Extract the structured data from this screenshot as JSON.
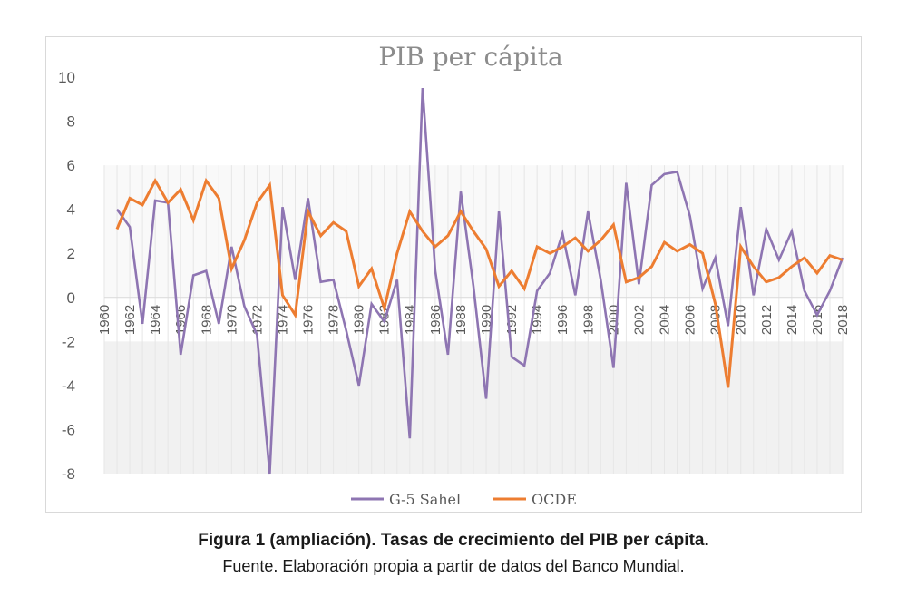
{
  "caption": {
    "title": "Figura 1 (ampliación). Tasas de crecimiento del PIB per cápita.",
    "source": "Fuente. Elaboración propia a partir de datos del Banco Mundial."
  },
  "chart_data": {
    "type": "line",
    "title": "PIB per cápita",
    "xlabel": "",
    "ylabel": "",
    "ylim": [
      -8,
      10
    ],
    "yticks": [
      -8,
      -6,
      -4,
      -2,
      0,
      2,
      4,
      6,
      8,
      10
    ],
    "xlim": [
      1960,
      2018
    ],
    "x_tick_labels": [
      "1960",
      "1962",
      "1964",
      "1966",
      "1968",
      "1970",
      "1972",
      "1974",
      "1976",
      "1978",
      "1980",
      "1982",
      "1984",
      "1986",
      "1988",
      "1990",
      "1992",
      "1994",
      "1996",
      "1998",
      "2000",
      "2002",
      "2004",
      "2006",
      "2008",
      "2010",
      "2012",
      "2014",
      "2016",
      "2018"
    ],
    "legend_position": "bottom",
    "grid": "vertical",
    "x": [
      1961,
      1962,
      1963,
      1964,
      1965,
      1966,
      1967,
      1968,
      1969,
      1970,
      1971,
      1972,
      1973,
      1974,
      1975,
      1976,
      1977,
      1978,
      1979,
      1980,
      1981,
      1982,
      1983,
      1984,
      1985,
      1986,
      1987,
      1988,
      1989,
      1990,
      1991,
      1992,
      1993,
      1994,
      1995,
      1996,
      1997,
      1998,
      1999,
      2000,
      2001,
      2002,
      2003,
      2004,
      2005,
      2006,
      2007,
      2008,
      2009,
      2010,
      2011,
      2012,
      2013,
      2014,
      2015,
      2016,
      2017,
      2018
    ],
    "series": [
      {
        "name": "G-5 Sahel",
        "color": "#8e75b2",
        "values": [
          4.0,
          3.2,
          -1.2,
          4.4,
          4.3,
          -2.6,
          1.0,
          1.2,
          -1.2,
          2.3,
          -0.4,
          -1.7,
          -8.0,
          4.1,
          0.8,
          4.5,
          0.7,
          0.8,
          -1.5,
          -4.0,
          -0.3,
          -1.1,
          0.8,
          -6.4,
          9.5,
          1.2,
          -2.6,
          4.8,
          0.5,
          -4.6,
          3.9,
          -2.7,
          -3.1,
          0.3,
          1.1,
          2.9,
          0.1,
          3.9,
          0.8,
          -3.2,
          5.2,
          0.6,
          5.1,
          5.6,
          5.7,
          3.7,
          0.4,
          1.8,
          -1.3,
          4.1,
          0.1,
          3.1,
          1.7,
          3.0,
          0.3,
          -0.8,
          0.3,
          1.8
        ]
      },
      {
        "name": "OCDE",
        "color": "#ed7d31",
        "values": [
          3.1,
          4.5,
          4.2,
          5.3,
          4.3,
          4.9,
          3.5,
          5.3,
          4.5,
          1.3,
          2.6,
          4.3,
          5.1,
          0.1,
          -0.8,
          3.9,
          2.8,
          3.4,
          3.0,
          0.5,
          1.3,
          -0.5,
          2.0,
          3.9,
          3.0,
          2.3,
          2.8,
          3.9,
          3.0,
          2.2,
          0.5,
          1.2,
          0.4,
          2.3,
          2.0,
          2.3,
          2.7,
          2.1,
          2.6,
          3.3,
          0.7,
          0.9,
          1.4,
          2.5,
          2.1,
          2.4,
          2.0,
          -0.3,
          -4.1,
          2.3,
          1.4,
          0.7,
          0.9,
          1.4,
          1.8,
          1.1,
          1.9,
          1.7
        ]
      }
    ]
  }
}
